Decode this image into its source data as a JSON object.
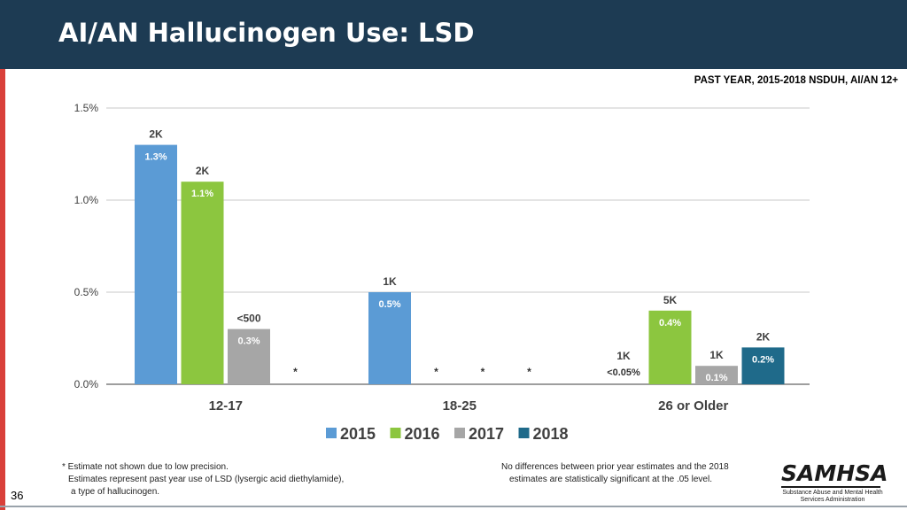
{
  "title": "AI/AN Hallucinogen Use: LSD",
  "subtitle": "PAST YEAR, 2015-2018 NSDUH, AI/AN 12+",
  "page_number": "36",
  "footnotes": {
    "left_line1": "* Estimate not shown due to low precision.",
    "left_line2": "Estimates represent past year use of LSD (lysergic acid diethylamide),",
    "left_line3": "a type of hallucinogen.",
    "right_line1": "No differences between prior year estimates and the 2018",
    "right_line2": "estimates are statistically significant at the .05 level."
  },
  "logo": {
    "name": "SAMHSA",
    "line1": "Substance Abuse and Mental Health",
    "line2": "Services Administration"
  },
  "chart_data": {
    "type": "bar",
    "categories": [
      "12-17",
      "18-25",
      "26 or Older"
    ],
    "ylim": [
      0,
      1.5
    ],
    "yticks": [
      "0.0%",
      "0.5%",
      "1.0%",
      "1.5%"
    ],
    "grid": true,
    "legend_position": "bottom",
    "colors": [
      "#5b9bd5",
      "#8cc63f",
      "#a6a6a6",
      "#1f6a8a"
    ],
    "series": [
      {
        "name": "2015",
        "values": [
          1.3,
          0.5,
          null
        ],
        "labels": [
          "1.3%",
          "0.5%",
          "<0.05%"
        ],
        "counts": [
          "2K",
          "1K",
          "1K"
        ]
      },
      {
        "name": "2016",
        "values": [
          1.1,
          null,
          0.4
        ],
        "labels": [
          "1.1%",
          "*",
          "0.4%"
        ],
        "counts": [
          "2K",
          "",
          "5K"
        ]
      },
      {
        "name": "2017",
        "values": [
          0.3,
          null,
          0.1
        ],
        "labels": [
          "0.3%",
          "*",
          "0.1%"
        ],
        "counts": [
          "<500",
          "",
          "1K"
        ]
      },
      {
        "name": "2018",
        "values": [
          null,
          null,
          0.2
        ],
        "labels": [
          "*",
          "*",
          "0.2%"
        ],
        "counts": [
          "",
          "",
          "2K"
        ]
      }
    ]
  }
}
